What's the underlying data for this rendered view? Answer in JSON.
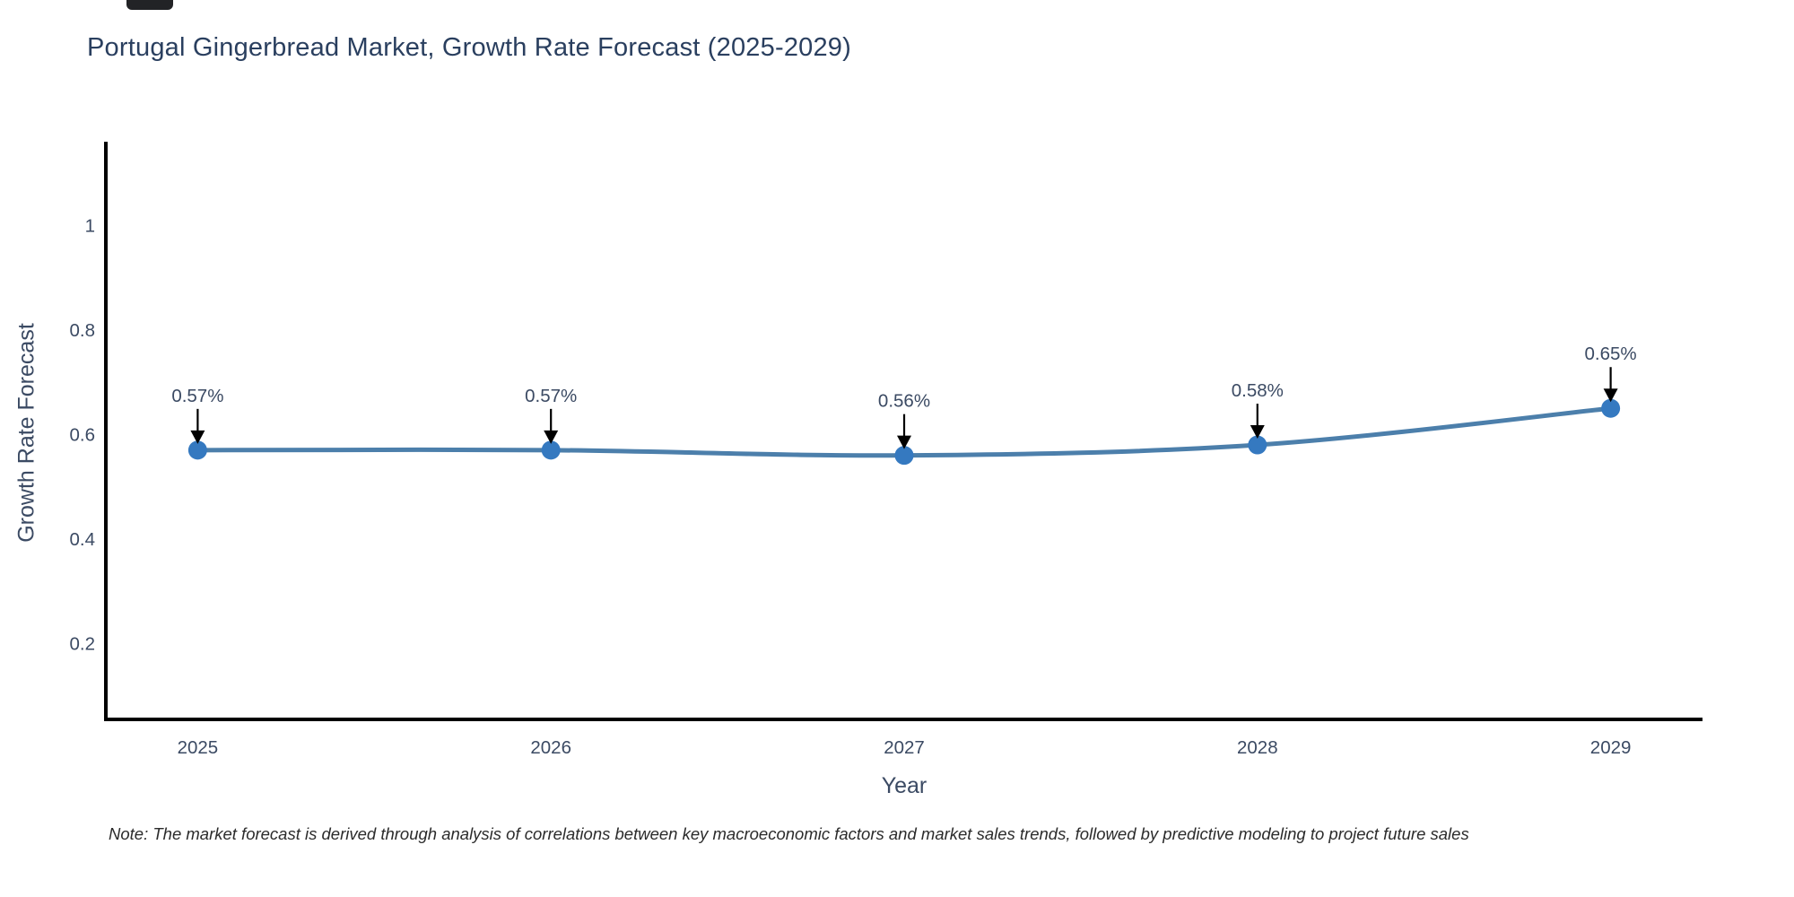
{
  "chart_data": {
    "type": "line",
    "title": "Portugal Gingerbread Market, Growth Rate Forecast (2025-2029)",
    "xlabel": "Year",
    "ylabel": "Growth Rate Forecast",
    "x": [
      2025,
      2026,
      2027,
      2028,
      2029
    ],
    "series": [
      {
        "name": "Growth Rate Forecast",
        "values": [
          0.57,
          0.57,
          0.56,
          0.58,
          0.65
        ]
      }
    ],
    "point_labels": [
      "0.57%",
      "0.57%",
      "0.56%",
      "0.58%",
      "0.65%"
    ],
    "x_tick_labels": [
      "2025",
      "2026",
      "2027",
      "2028",
      "2029"
    ],
    "y_tick_values": [
      0.2,
      0.4,
      0.6,
      0.8,
      1
    ],
    "y_tick_labels": [
      "0.2",
      "0.4",
      "0.6",
      "0.8",
      "1"
    ],
    "xlim": [
      2024.74,
      2029.26
    ],
    "ylim": [
      0.055,
      1.16
    ],
    "grid": false,
    "legend": false,
    "line_shape": "spline",
    "colors": {
      "line": "#4c7fab",
      "marker": "#3579c0",
      "axis": "#000000",
      "text": "#3b4a63",
      "title": "#2a3f5f",
      "arrow": "#000000"
    }
  },
  "note": {
    "text": "Note: The market forecast is derived through analysis of correlations between key macroeconomic factors and market sales trends, followed by predictive modeling to project future sales"
  }
}
